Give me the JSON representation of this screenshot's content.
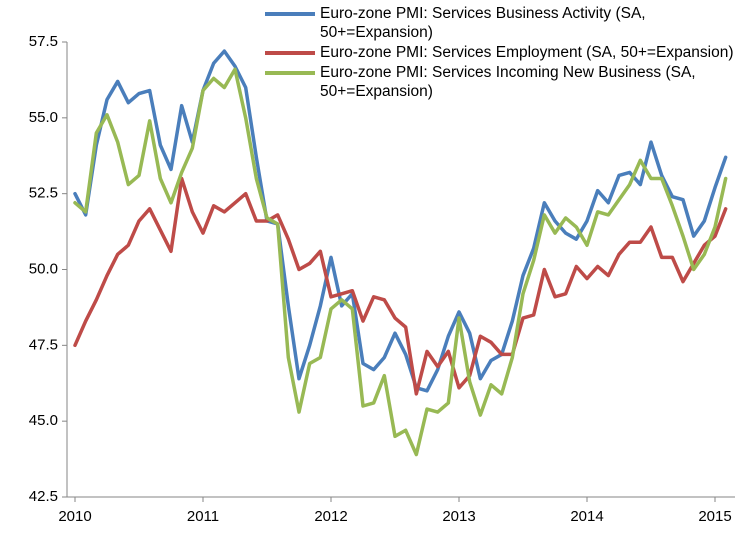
{
  "chart_data": {
    "type": "line",
    "categories": [
      "2010",
      null,
      null,
      null,
      null,
      null,
      null,
      null,
      null,
      null,
      null,
      null,
      "2011",
      null,
      null,
      null,
      null,
      null,
      null,
      null,
      null,
      null,
      null,
      null,
      "2012",
      null,
      null,
      null,
      null,
      null,
      null,
      null,
      null,
      null,
      null,
      null,
      "2013",
      null,
      null,
      null,
      null,
      null,
      null,
      null,
      null,
      null,
      null,
      null,
      "2014",
      null,
      null,
      null,
      null,
      null,
      null,
      null,
      null,
      null,
      null,
      null,
      "2015",
      null
    ],
    "series": [
      {
        "name": "Euro-zone PMI: Services Business Activity (SA, 50+=Expansion)",
        "color": "#4a7ebb",
        "values": [
          52.5,
          51.8,
          54.1,
          55.6,
          56.2,
          55.5,
          55.8,
          55.9,
          54.1,
          53.3,
          55.4,
          54.2,
          55.9,
          56.8,
          57.2,
          56.7,
          56.0,
          53.7,
          51.6,
          51.5,
          48.8,
          46.4,
          47.5,
          48.8,
          50.4,
          48.8,
          49.2,
          46.9,
          46.7,
          47.1,
          47.9,
          47.2,
          46.1,
          46.0,
          46.7,
          47.8,
          48.6,
          47.9,
          46.4,
          47.0,
          47.2,
          48.3,
          49.8,
          50.7,
          52.2,
          51.6,
          51.2,
          51.0,
          51.6,
          52.6,
          52.2,
          53.1,
          53.2,
          52.8,
          54.2,
          53.1,
          52.4,
          52.3,
          51.1,
          51.6,
          52.7,
          53.7
        ]
      },
      {
        "name": "Euro-zone PMI: Services Employment (SA, 50+=Expansion)",
        "color": "#be4b48",
        "values": [
          47.5,
          48.3,
          49.0,
          49.8,
          50.5,
          50.8,
          51.6,
          52.0,
          51.3,
          50.6,
          53.0,
          51.9,
          51.2,
          52.1,
          51.9,
          52.2,
          52.5,
          51.6,
          51.6,
          51.8,
          51.0,
          50.0,
          50.2,
          50.6,
          49.1,
          49.2,
          49.3,
          48.3,
          49.1,
          49.0,
          48.4,
          48.1,
          45.9,
          47.3,
          46.8,
          47.3,
          46.1,
          46.5,
          47.8,
          47.6,
          47.2,
          47.2,
          48.4,
          48.5,
          50.0,
          49.1,
          49.2,
          50.1,
          49.7,
          50.1,
          49.8,
          50.5,
          50.9,
          50.9,
          51.4,
          50.4,
          50.4,
          49.6,
          50.2,
          50.8,
          51.1,
          52.0
        ]
      },
      {
        "name": "Euro-zone PMI: Services Incoming New Business (SA, 50+=Expansion)",
        "color": "#98b954",
        "values": [
          52.2,
          51.9,
          54.5,
          55.1,
          54.2,
          52.8,
          53.1,
          54.9,
          53.0,
          52.2,
          53.2,
          54.0,
          55.9,
          56.3,
          56.0,
          56.6,
          55.0,
          53.0,
          51.7,
          51.5,
          47.1,
          45.3,
          46.9,
          47.1,
          48.7,
          49.0,
          48.7,
          45.5,
          45.6,
          46.5,
          44.5,
          44.7,
          43.9,
          45.4,
          45.3,
          45.6,
          48.4,
          46.3,
          45.2,
          46.2,
          45.9,
          47.1,
          49.2,
          50.3,
          51.8,
          51.2,
          51.7,
          51.4,
          50.8,
          51.9,
          51.8,
          52.3,
          52.8,
          53.6,
          53.0,
          53.0,
          52.1,
          51.1,
          50.0,
          50.5,
          51.4,
          53.0
        ]
      }
    ],
    "ylim": [
      42.5,
      57.5
    ],
    "yticks": [
      42.5,
      {
        "value": 45,
        "label": "45.0"
      },
      47.5,
      {
        "value": 50,
        "label": "50.0"
      },
      52.5,
      {
        "value": 55,
        "label": "55.0"
      },
      57.5
    ],
    "grid": false,
    "legend": "top-right"
  }
}
